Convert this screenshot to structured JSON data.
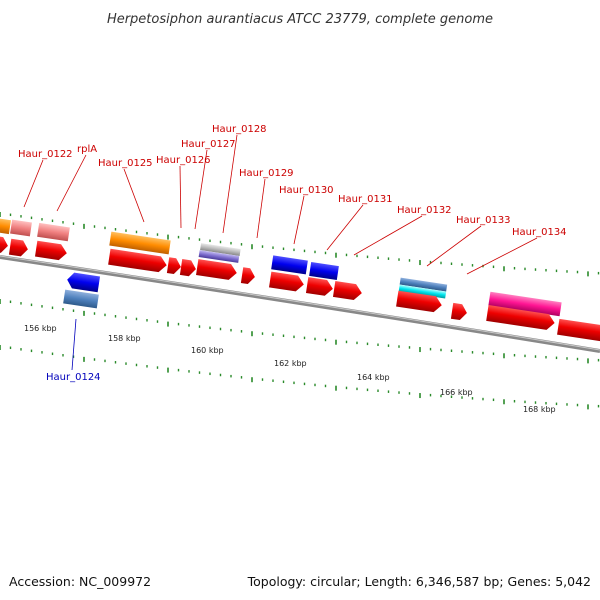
{
  "title": "Herpetosiphon aurantiacus ATCC 23779, complete genome",
  "footer": {
    "accession": "Accession: NC_009972",
    "summary": "Topology: circular; Length: 6,346,587 bp; Genes: 5,042"
  },
  "colors": {
    "cds": "#ee0000",
    "label_top": "#cc0000",
    "label_bottom": "#0000bb",
    "backbone": "#888888",
    "tick": "#2a8a2a"
  },
  "axis": {
    "tick_labels": [
      "156 kbp",
      "158 kbp",
      "160 kbp",
      "162 kbp",
      "164 kbp",
      "166 kbp",
      "168 kbp"
    ]
  },
  "gene_labels": [
    {
      "text": "Haur_0122",
      "strand": "+"
    },
    {
      "text": "rplA",
      "strand": "+"
    },
    {
      "text": "Haur_0125",
      "strand": "+"
    },
    {
      "text": "Haur_0126",
      "strand": "+"
    },
    {
      "text": "Haur_0127",
      "strand": "+"
    },
    {
      "text": "Haur_0128",
      "strand": "+"
    },
    {
      "text": "Haur_0129",
      "strand": "+"
    },
    {
      "text": "Haur_0130",
      "strand": "+"
    },
    {
      "text": "Haur_0131",
      "strand": "+"
    },
    {
      "text": "Haur_0132",
      "strand": "+"
    },
    {
      "text": "Haur_0133",
      "strand": "+"
    },
    {
      "text": "Haur_0134",
      "strand": "+"
    },
    {
      "text": "Haur_0124",
      "strand": "-"
    }
  ],
  "feature_colors": [
    "#ff8c00",
    "#f08080",
    "#9080d0",
    "#bbbbbb",
    "#0000ee",
    "#4f81bd",
    "#00e5ee",
    "#ff1493"
  ]
}
